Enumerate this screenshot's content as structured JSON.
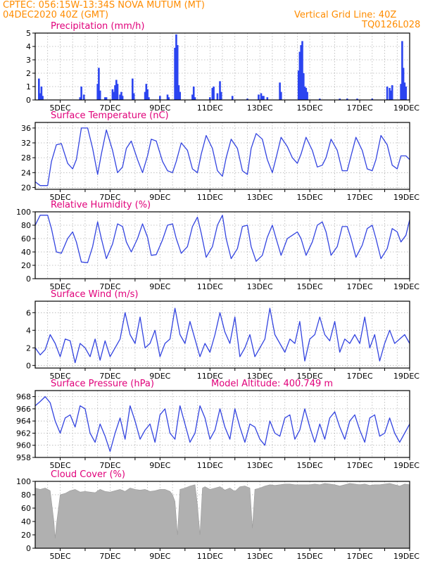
{
  "header": {
    "left_line1": "CPTEC:   056:15W-13:34S   NOVA MUTUM (MT)",
    "left_line2": "04DEC2020 40Z (GMT)",
    "right_line1": "Vertical Grid Line: 40Z",
    "right_line2": "TQ0126L028"
  },
  "colors": {
    "header": "#ff8c00",
    "title": "#e0007a",
    "series": "#3344e0",
    "bars": "#2b44f0",
    "cloud": "#b0b0b0"
  },
  "chart_data": [
    {
      "type": "bar",
      "title": "Precipitation (mm/h)",
      "xlim": [
        4,
        19
      ],
      "ylim": [
        0,
        5
      ],
      "yticks": [
        "0",
        "1",
        "2",
        "3",
        "4",
        "5"
      ],
      "xticks": [
        "5DEC",
        "7DEC",
        "9DEC",
        "11DEC",
        "13DEC",
        "15DEC",
        "17DEC",
        "19DEC"
      ],
      "x": [
        4.15,
        4.2,
        4.25,
        4.3,
        5.8,
        5.85,
        5.95,
        6.5,
        6.55,
        6.6,
        6.8,
        6.85,
        7.1,
        7.15,
        7.2,
        7.25,
        7.3,
        7.4,
        7.45,
        7.5,
        7.9,
        7.95,
        8.4,
        8.45,
        8.5,
        8.55,
        9.0,
        9.3,
        9.35,
        9.6,
        9.65,
        9.7,
        9.75,
        9.8,
        10.3,
        10.35,
        10.4,
        11.0,
        11.1,
        11.15,
        11.3,
        11.4,
        11.45,
        11.9,
        12.5,
        12.95,
        13.05,
        13.1,
        13.15,
        13.3,
        13.8,
        13.85,
        14.55,
        14.6,
        14.65,
        14.7,
        14.75,
        14.8,
        14.85,
        14.9,
        15.4,
        16.2,
        16.5,
        16.9,
        17.5,
        18.1,
        18.2,
        18.25,
        18.3,
        18.65,
        18.7,
        18.75,
        18.8,
        18.85
      ],
      "values": [
        1.6,
        0.5,
        1.0,
        0.3,
        0.2,
        1.0,
        0.4,
        1.2,
        2.4,
        0.7,
        0.2,
        0.2,
        0.8,
        0.6,
        1.1,
        1.5,
        1.2,
        0.4,
        0.6,
        0.3,
        1.6,
        0.5,
        0.6,
        1.2,
        0.8,
        0.2,
        0.3,
        0.4,
        0.2,
        3.9,
        4.9,
        4.1,
        1.1,
        0.6,
        0.4,
        1.0,
        0.2,
        0.2,
        0.9,
        1.0,
        0.5,
        1.4,
        0.6,
        0.3,
        0.1,
        0.4,
        0.5,
        0.3,
        0.3,
        0.2,
        1.3,
        0.6,
        2.2,
        3.6,
        4.1,
        4.4,
        2.0,
        1.0,
        0.9,
        0.6,
        0.1,
        0.1,
        0.1,
        0.1,
        0.1,
        1.0,
        0.9,
        0.7,
        1.1,
        1.2,
        4.4,
        2.4,
        1.3,
        1.0
      ]
    },
    {
      "type": "line",
      "title": "Surface Temperature (nC)",
      "xlim": [
        4,
        19
      ],
      "ylim": [
        19.5,
        37.5
      ],
      "yticks": [
        "20",
        "24",
        "28",
        "32",
        "36"
      ],
      "xticks": [
        "5DEC",
        "7DEC",
        "9DEC",
        "11DEC",
        "13DEC",
        "15DEC",
        "17DEC",
        "19DEC"
      ],
      "x": [
        4.0,
        4.2,
        4.5,
        4.65,
        4.85,
        5.05,
        5.3,
        5.5,
        5.65,
        5.85,
        6.1,
        6.3,
        6.5,
        6.65,
        6.85,
        7.1,
        7.3,
        7.5,
        7.65,
        7.85,
        8.1,
        8.3,
        8.5,
        8.65,
        8.85,
        9.1,
        9.3,
        9.5,
        9.65,
        9.85,
        10.1,
        10.3,
        10.5,
        10.65,
        10.85,
        11.1,
        11.3,
        11.5,
        11.65,
        11.85,
        12.1,
        12.3,
        12.5,
        12.65,
        12.85,
        13.1,
        13.3,
        13.5,
        13.65,
        13.85,
        14.1,
        14.3,
        14.5,
        14.65,
        14.85,
        15.1,
        15.3,
        15.5,
        15.65,
        15.85,
        16.1,
        16.3,
        16.5,
        16.65,
        16.85,
        17.1,
        17.3,
        17.5,
        17.65,
        17.85,
        18.1,
        18.3,
        18.5,
        18.65,
        18.85,
        19.0
      ],
      "values": [
        21.5,
        20.5,
        20.5,
        27.0,
        31.5,
        31.8,
        26.5,
        25.0,
        27.5,
        36.0,
        36.0,
        30.5,
        23.5,
        29.0,
        35.5,
        30.0,
        24.0,
        25.5,
        30.5,
        32.5,
        27.5,
        24.0,
        28.5,
        33.0,
        32.5,
        27.0,
        24.5,
        24.0,
        27.0,
        32.0,
        30.0,
        25.0,
        24.0,
        29.0,
        34.0,
        30.5,
        24.5,
        23.0,
        28.0,
        33.0,
        30.5,
        24.5,
        23.5,
        30.5,
        34.5,
        33.0,
        27.5,
        24.0,
        28.0,
        33.5,
        31.0,
        28.0,
        26.5,
        29.0,
        33.5,
        30.0,
        25.5,
        26.0,
        28.0,
        33.0,
        30.0,
        24.5,
        24.5,
        28.5,
        33.5,
        30.0,
        25.0,
        24.5,
        27.5,
        34.0,
        31.5,
        26.0,
        25.0,
        28.5,
        28.5,
        27.5
      ]
    },
    {
      "type": "line",
      "title": "Relative Humidity (%)",
      "xlim": [
        4,
        19
      ],
      "ylim": [
        0,
        100
      ],
      "yticks": [
        "0",
        "20",
        "40",
        "60",
        "80",
        "100"
      ],
      "xticks": [
        "5DEC",
        "7DEC",
        "9DEC",
        "11DEC",
        "13DEC",
        "15DEC",
        "17DEC",
        "19DEC"
      ],
      "x": [
        4.0,
        4.2,
        4.5,
        4.65,
        4.85,
        5.05,
        5.3,
        5.5,
        5.65,
        5.85,
        6.1,
        6.3,
        6.5,
        6.65,
        6.85,
        7.1,
        7.3,
        7.5,
        7.65,
        7.85,
        8.1,
        8.3,
        8.5,
        8.65,
        8.85,
        9.1,
        9.3,
        9.5,
        9.65,
        9.85,
        10.1,
        10.3,
        10.5,
        10.65,
        10.85,
        11.1,
        11.3,
        11.5,
        11.65,
        11.85,
        12.1,
        12.3,
        12.5,
        12.65,
        12.85,
        13.1,
        13.3,
        13.5,
        13.65,
        13.85,
        14.1,
        14.3,
        14.5,
        14.65,
        14.85,
        15.1,
        15.3,
        15.5,
        15.65,
        15.85,
        16.1,
        16.3,
        16.5,
        16.65,
        16.85,
        17.1,
        17.3,
        17.5,
        17.65,
        17.85,
        18.1,
        18.3,
        18.5,
        18.65,
        18.85,
        19.0
      ],
      "values": [
        80.0,
        95.0,
        95.0,
        75.0,
        40.0,
        38.0,
        60.0,
        70.0,
        55.0,
        25.0,
        24.0,
        48.0,
        85.0,
        60.0,
        30.0,
        52.0,
        82.0,
        78.0,
        55.0,
        40.0,
        60.0,
        82.0,
        62.0,
        35.0,
        36.0,
        58.0,
        80.0,
        82.0,
        60.0,
        38.0,
        48.0,
        78.0,
        92.0,
        68.0,
        32.0,
        48.0,
        80.0,
        95.0,
        60.0,
        30.0,
        45.0,
        78.0,
        80.0,
        48.0,
        26.0,
        35.0,
        62.0,
        80.0,
        60.0,
        35.0,
        60.0,
        65.0,
        70.0,
        60.0,
        35.0,
        55.0,
        80.0,
        85.0,
        70.0,
        35.0,
        48.0,
        78.0,
        78.0,
        60.0,
        32.0,
        50.0,
        75.0,
        80.0,
        60.0,
        30.0,
        45.0,
        75.0,
        70.0,
        55.0,
        65.0,
        88.0
      ]
    },
    {
      "type": "line",
      "title": "Surface Wind (m/s)",
      "xlim": [
        4,
        19
      ],
      "ylim": [
        -0.3,
        7.3
      ],
      "yticks": [
        "0",
        "2",
        "4",
        "6"
      ],
      "xticks": [
        "5DEC",
        "7DEC",
        "9DEC",
        "11DEC",
        "13DEC",
        "15DEC",
        "17DEC",
        "19DEC"
      ],
      "x": [
        4.0,
        4.2,
        4.4,
        4.6,
        4.8,
        5.0,
        5.2,
        5.4,
        5.6,
        5.8,
        6.0,
        6.2,
        6.4,
        6.6,
        6.8,
        7.0,
        7.2,
        7.4,
        7.6,
        7.8,
        8.0,
        8.2,
        8.4,
        8.6,
        8.8,
        9.0,
        9.2,
        9.4,
        9.6,
        9.8,
        10.0,
        10.2,
        10.4,
        10.6,
        10.8,
        11.0,
        11.2,
        11.4,
        11.6,
        11.8,
        12.0,
        12.2,
        12.4,
        12.6,
        12.8,
        13.0,
        13.2,
        13.4,
        13.6,
        13.8,
        14.0,
        14.2,
        14.4,
        14.6,
        14.8,
        15.0,
        15.2,
        15.4,
        15.6,
        15.8,
        16.0,
        16.2,
        16.4,
        16.6,
        16.8,
        17.0,
        17.2,
        17.4,
        17.6,
        17.8,
        18.0,
        18.2,
        18.4,
        18.6,
        18.8,
        19.0
      ],
      "values": [
        2.0,
        1.2,
        1.8,
        3.5,
        2.5,
        1.0,
        3.0,
        2.8,
        0.3,
        2.5,
        2.0,
        1.0,
        3.0,
        0.6,
        2.8,
        1.0,
        2.0,
        3.0,
        6.0,
        3.5,
        2.5,
        5.5,
        2.0,
        2.5,
        4.0,
        1.0,
        2.5,
        3.0,
        6.5,
        3.5,
        2.5,
        5.0,
        3.0,
        1.0,
        2.5,
        1.5,
        3.5,
        6.0,
        3.8,
        2.5,
        5.5,
        1.0,
        2.0,
        3.5,
        1.0,
        2.0,
        3.0,
        6.5,
        3.5,
        2.5,
        1.5,
        3.0,
        2.5,
        5.0,
        0.5,
        3.0,
        3.5,
        5.5,
        3.5,
        2.8,
        5.0,
        1.5,
        3.0,
        2.5,
        3.5,
        2.5,
        5.5,
        2.0,
        3.5,
        0.5,
        2.5,
        4.0,
        2.5,
        3.0,
        3.5,
        2.5
      ]
    },
    {
      "type": "line",
      "title": "Surface Pressure (hPa)",
      "annotation": "Model Altitude: 400.749 m",
      "xlim": [
        4,
        19
      ],
      "ylim": [
        958,
        969
      ],
      "yticks": [
        "958",
        "960",
        "962",
        "964",
        "966",
        "968"
      ],
      "xticks": [
        "5DEC",
        "7DEC",
        "9DEC",
        "11DEC",
        "13DEC",
        "15DEC",
        "17DEC",
        "19DEC"
      ],
      "x": [
        4.0,
        4.2,
        4.4,
        4.6,
        4.8,
        5.0,
        5.2,
        5.4,
        5.6,
        5.8,
        6.0,
        6.2,
        6.4,
        6.6,
        6.8,
        7.0,
        7.2,
        7.4,
        7.6,
        7.8,
        8.0,
        8.2,
        8.4,
        8.6,
        8.8,
        9.0,
        9.2,
        9.4,
        9.6,
        9.8,
        10.0,
        10.2,
        10.4,
        10.6,
        10.8,
        11.0,
        11.2,
        11.4,
        11.6,
        11.8,
        12.0,
        12.2,
        12.4,
        12.6,
        12.8,
        13.0,
        13.2,
        13.4,
        13.6,
        13.8,
        14.0,
        14.2,
        14.4,
        14.6,
        14.8,
        15.0,
        15.2,
        15.4,
        15.6,
        15.8,
        16.0,
        16.2,
        16.4,
        16.6,
        16.8,
        17.0,
        17.2,
        17.4,
        17.6,
        17.8,
        18.0,
        18.2,
        18.4,
        18.6,
        18.8,
        19.0
      ],
      "values": [
        966.5,
        967.2,
        968.0,
        967.0,
        964.0,
        962.0,
        964.5,
        965.0,
        963.0,
        966.5,
        966.0,
        962.0,
        960.5,
        963.5,
        961.5,
        959.0,
        962.0,
        964.5,
        961.0,
        966.5,
        964.0,
        961.0,
        962.5,
        963.5,
        960.5,
        965.0,
        966.0,
        962.0,
        961.0,
        966.5,
        963.5,
        960.5,
        962.0,
        966.5,
        964.5,
        961.0,
        962.5,
        966.0,
        963.0,
        961.0,
        966.0,
        963.0,
        960.5,
        963.5,
        963.0,
        961.0,
        960.0,
        964.0,
        962.0,
        961.5,
        964.5,
        965.0,
        961.0,
        962.5,
        966.0,
        963.0,
        960.5,
        963.5,
        961.0,
        964.5,
        965.5,
        963.0,
        961.0,
        964.0,
        965.0,
        962.5,
        960.5,
        964.5,
        965.0,
        961.5,
        962.0,
        964.5,
        962.0,
        960.5,
        962.0,
        963.5
      ]
    },
    {
      "type": "area",
      "title": "Cloud Cover (%)",
      "xlim": [
        4,
        19
      ],
      "ylim": [
        0,
        100
      ],
      "yticks": [
        "0",
        "20",
        "40",
        "60",
        "80",
        "100"
      ],
      "xticks": [
        "5DEC",
        "7DEC",
        "9DEC",
        "11DEC",
        "13DEC",
        "15DEC",
        "17DEC",
        "19DEC"
      ],
      "x": [
        4.0,
        4.2,
        4.4,
        4.6,
        4.75,
        4.8,
        4.85,
        5.0,
        5.2,
        5.4,
        5.6,
        5.8,
        6.0,
        6.2,
        6.4,
        6.6,
        6.8,
        7.0,
        7.2,
        7.4,
        7.6,
        7.8,
        8.0,
        8.2,
        8.4,
        8.6,
        8.8,
        9.0,
        9.2,
        9.4,
        9.5,
        9.6,
        9.7,
        9.8,
        10.0,
        10.2,
        10.4,
        10.5,
        10.6,
        10.7,
        10.8,
        11.0,
        11.2,
        11.4,
        11.6,
        11.8,
        12.0,
        12.2,
        12.4,
        12.6,
        12.7,
        12.8,
        13.0,
        13.2,
        13.4,
        13.6,
        13.8,
        14.0,
        14.2,
        14.4,
        14.6,
        14.8,
        15.0,
        15.2,
        15.4,
        15.6,
        15.8,
        16.0,
        16.2,
        16.4,
        16.6,
        16.8,
        17.0,
        17.2,
        17.4,
        17.6,
        17.8,
        18.0,
        18.2,
        18.4,
        18.6,
        18.8,
        19.0
      ],
      "values": [
        90,
        88,
        90,
        86,
        40,
        15,
        35,
        80,
        82,
        86,
        88,
        84,
        85,
        84,
        83,
        88,
        85,
        84,
        86,
        88,
        85,
        90,
        88,
        87,
        88,
        85,
        86,
        88,
        88,
        85,
        80,
        70,
        20,
        88,
        90,
        93,
        95,
        65,
        20,
        90,
        92,
        88,
        90,
        92,
        87,
        90,
        85,
        92,
        93,
        90,
        30,
        88,
        90,
        93,
        95,
        94,
        95,
        96,
        96,
        95,
        95,
        95,
        95,
        96,
        95,
        97,
        96,
        95,
        93,
        95,
        97,
        96,
        95,
        96,
        94,
        95,
        95,
        96,
        97,
        95,
        93,
        96,
        95
      ]
    }
  ]
}
